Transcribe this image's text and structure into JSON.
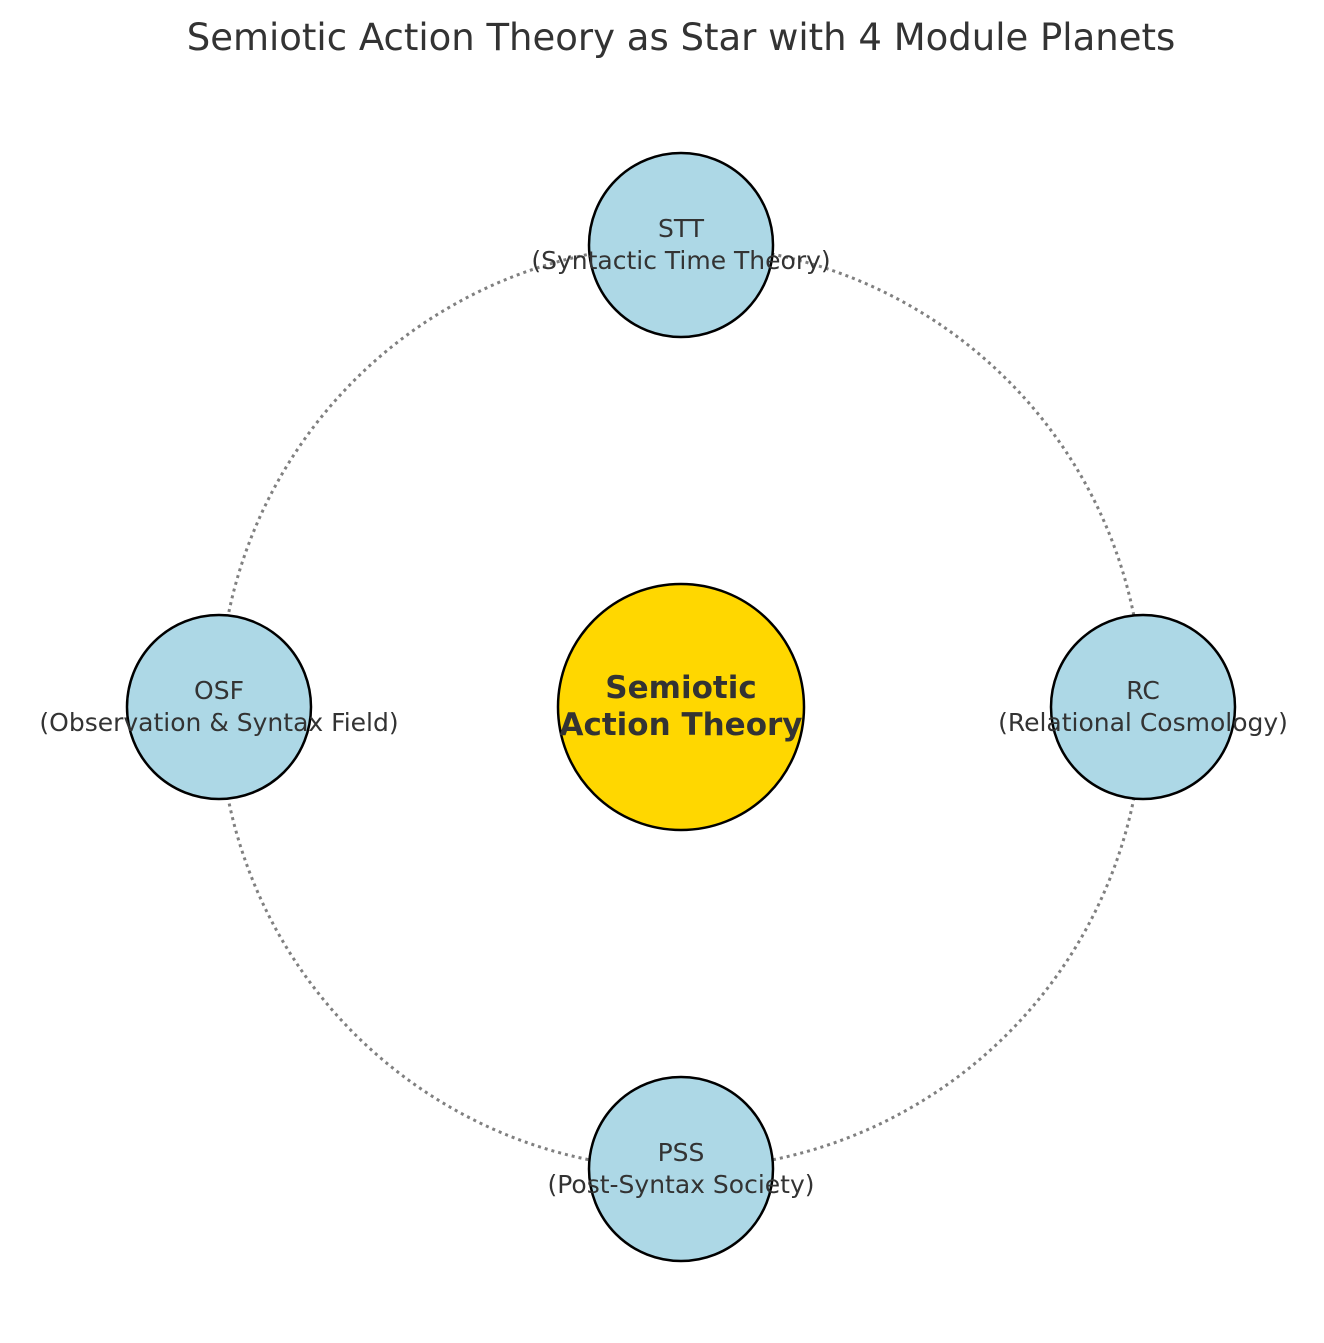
{
  "title": "Semiotic Action Theory as Star with 4 Module Planets",
  "colors": {
    "star_fill": "#FFD700",
    "planet_fill": "#ADD8E6",
    "outline": "#000000",
    "orbit": "#808080",
    "text": "#333333"
  },
  "star": {
    "line1": "Semiotic",
    "line2": "Action Theory"
  },
  "planets": [
    {
      "abbr": "STT",
      "full": "(Syntactic Time Theory)",
      "angle_deg": 90
    },
    {
      "abbr": "RC",
      "full": "(Relational Cosmology)",
      "angle_deg": 0
    },
    {
      "abbr": "PSS",
      "full": "(Post-Syntax Society)",
      "angle_deg": 270
    },
    {
      "abbr": "OSF",
      "full": "(Observation & Syntax Field)",
      "angle_deg": 180
    }
  ]
}
